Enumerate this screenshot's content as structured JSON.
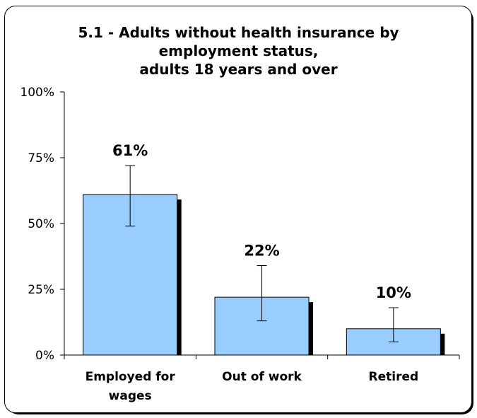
{
  "chart_data": {
    "type": "bar",
    "title_lines": [
      "5.1 - Adults without health insurance by",
      "employment status,",
      "adults 18 years and over"
    ],
    "categories": [
      [
        "Employed for",
        "wages"
      ],
      [
        "Out of work"
      ],
      [
        "Retired"
      ]
    ],
    "values": [
      61,
      22,
      10
    ],
    "error_low": [
      49,
      13,
      5
    ],
    "error_high": [
      72,
      34,
      18
    ],
    "data_labels": [
      "61%",
      "22%",
      "10%"
    ],
    "y_ticks": [
      "0%",
      "25%",
      "50%",
      "75%",
      "100%"
    ],
    "ylim": [
      0,
      100
    ],
    "bar_color": "#99ccff",
    "xlabel": "",
    "ylabel": ""
  }
}
